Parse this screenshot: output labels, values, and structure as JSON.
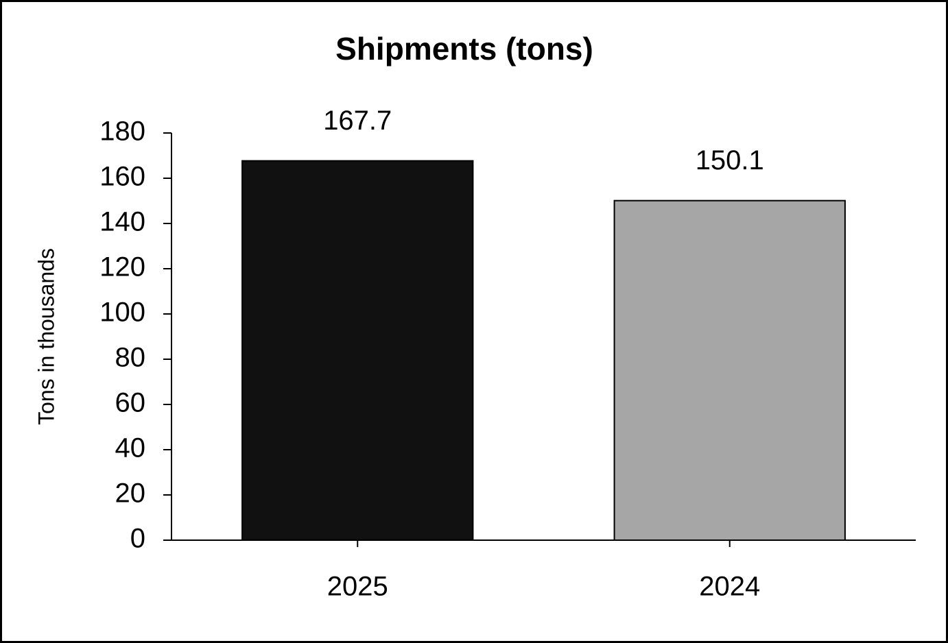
{
  "chart_data": {
    "type": "bar",
    "title": "Shipments (tons)",
    "y_label": "Tons in thousands",
    "categories": [
      "2025",
      "2024"
    ],
    "values": [
      167.7,
      150.1
    ],
    "colors": [
      "#111111",
      "#a6a6a6"
    ],
    "ylim": [
      0,
      180
    ],
    "yticks": [
      0,
      20,
      40,
      60,
      80,
      100,
      120,
      140,
      160,
      180
    ],
    "grid": false
  }
}
